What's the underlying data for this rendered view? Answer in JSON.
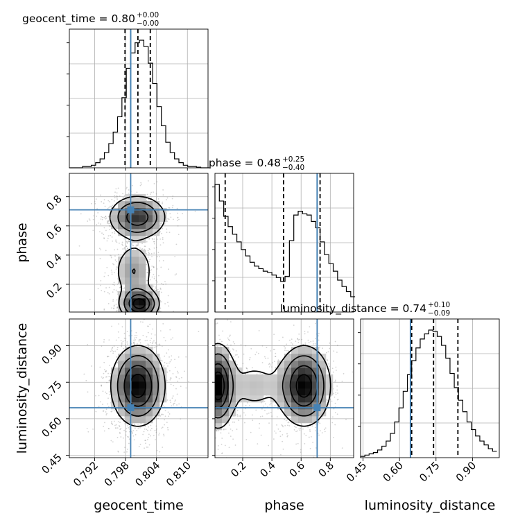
{
  "chart_data": {
    "type": "corner",
    "parameters": [
      "geocent_time",
      "phase",
      "luminosity_distance"
    ],
    "truths": {
      "geocent_time": 0.799,
      "phase": 0.71,
      "luminosity_distance": 0.645
    },
    "ranges": {
      "geocent_time": [
        0.7871,
        0.814
      ],
      "phase": [
        0.01,
        0.96
      ],
      "luminosity_distance": [
        0.44,
        1.01
      ]
    },
    "ticks": {
      "geocent_time": [
        0.792,
        0.798,
        0.804,
        0.81
      ],
      "phase": [
        0.2,
        0.4,
        0.6,
        0.8
      ],
      "luminosity_distance": [
        0.45,
        0.6,
        0.75,
        0.9
      ]
    },
    "tick_labels": {
      "geocent_time": [
        "0.792",
        "0.798",
        "0.804",
        "0.810"
      ],
      "phase": [
        "0.2",
        "0.4",
        "0.6",
        "0.8"
      ],
      "luminosity_distance": [
        "0.45",
        "0.60",
        "0.75",
        "0.90"
      ]
    },
    "quantiles": {
      "geocent_time": [
        0.7979,
        0.8004,
        0.8028
      ],
      "phase": [
        0.08,
        0.48,
        0.73
      ],
      "luminosity_distance": [
        0.65,
        0.74,
        0.84
      ]
    },
    "titles": [
      {
        "param": "geocent_time",
        "prefix": "geocent_time = 0.80",
        "sup": "+0.00",
        "sub": "−0.00"
      },
      {
        "param": "phase",
        "prefix": "phase = 0.48",
        "sup": "+0.25",
        "sub": "−0.40"
      },
      {
        "param": "luminosity_distance",
        "prefix": "luminosity_distance = 0.74",
        "sup": "+0.10",
        "sub": "−0.09"
      }
    ],
    "histograms": {
      "geocent_time": {
        "bin_edges": [
          0.7871,
          0.78795,
          0.7888,
          0.78965,
          0.7905,
          0.79135,
          0.7922,
          0.79305,
          0.7939,
          0.79475,
          0.7956,
          0.79645,
          0.7973,
          0.79815,
          0.799,
          0.79985,
          0.8007,
          0.80155,
          0.8024,
          0.80325,
          0.8041,
          0.80495,
          0.8058,
          0.80665,
          0.8075,
          0.80835,
          0.8092,
          0.81005,
          0.8109,
          0.81175,
          0.8126,
          0.81345,
          0.8143
        ],
        "counts": [
          0,
          0,
          0,
          0.01,
          0.01,
          0.02,
          0.04,
          0.07,
          0.12,
          0.19,
          0.28,
          0.4,
          0.55,
          0.78,
          0.9,
          0.98,
          1.0,
          0.95,
          0.82,
          0.66,
          0.48,
          0.33,
          0.2,
          0.12,
          0.07,
          0.04,
          0.02,
          0.01,
          0.01,
          0.005,
          0,
          0
        ]
      },
      "phase": {
        "bin_edges": [
          0.01,
          0.04,
          0.07,
          0.1,
          0.13,
          0.16,
          0.19,
          0.22,
          0.25,
          0.28,
          0.31,
          0.34,
          0.37,
          0.4,
          0.43,
          0.46,
          0.49,
          0.52,
          0.55,
          0.58,
          0.61,
          0.64,
          0.67,
          0.7,
          0.73,
          0.76,
          0.79,
          0.82,
          0.85,
          0.88,
          0.91,
          0.94,
          0.97
        ],
        "counts": [
          1.0,
          0.87,
          0.75,
          0.67,
          0.61,
          0.55,
          0.49,
          0.44,
          0.39,
          0.36,
          0.34,
          0.32,
          0.31,
          0.29,
          0.27,
          0.24,
          0.28,
          0.56,
          0.76,
          0.79,
          0.77,
          0.76,
          0.71,
          0.66,
          0.55,
          0.45,
          0.38,
          0.32,
          0.25,
          0.2,
          0.16,
          0.12
        ]
      },
      "luminosity_distance": {
        "bin_edges": [
          0.44,
          0.4575,
          0.475,
          0.4925,
          0.51,
          0.5275,
          0.545,
          0.5625,
          0.58,
          0.5975,
          0.615,
          0.6325,
          0.65,
          0.6675,
          0.685,
          0.7025,
          0.72,
          0.7375,
          0.755,
          0.7725,
          0.79,
          0.8075,
          0.825,
          0.8425,
          0.86,
          0.8775,
          0.895,
          0.9125,
          0.93,
          0.9475,
          0.965,
          0.9825,
          1.0
        ],
        "counts": [
          0.01,
          0.02,
          0.03,
          0.04,
          0.06,
          0.09,
          0.13,
          0.19,
          0.28,
          0.39,
          0.52,
          0.65,
          0.76,
          0.86,
          0.93,
          0.97,
          1.0,
          0.99,
          0.95,
          0.88,
          0.78,
          0.66,
          0.55,
          0.45,
          0.36,
          0.28,
          0.22,
          0.17,
          0.13,
          0.1,
          0.07,
          0.05
        ]
      }
    },
    "joint_densities": [
      {
        "x": "geocent_time",
        "y": "phase",
        "components": [
          {
            "mx": 0.8007,
            "my": 0.065,
            "sx": 0.0019,
            "sy": 0.055,
            "w": 1.0
          },
          {
            "mx": 0.7996,
            "my": 0.29,
            "sx": 0.0022,
            "sy": 0.11,
            "w": 0.33
          },
          {
            "mx": 0.8003,
            "my": 0.66,
            "sx": 0.0028,
            "sy": 0.075,
            "w": 0.8
          }
        ]
      },
      {
        "x": "geocent_time",
        "y": "luminosity_distance",
        "components": [
          {
            "mx": 0.8004,
            "my": 0.735,
            "sx": 0.0026,
            "sy": 0.082,
            "w": 1.0
          }
        ]
      },
      {
        "x": "phase",
        "y": "luminosity_distance",
        "components": [
          {
            "mx": 0.03,
            "my": 0.735,
            "sx": 0.06,
            "sy": 0.085,
            "w": 1.0
          },
          {
            "mx": 0.62,
            "my": 0.735,
            "sx": 0.09,
            "sy": 0.082,
            "w": 0.95
          },
          {
            "mx": 0.28,
            "my": 0.735,
            "sx": 0.12,
            "sy": 0.07,
            "w": 0.18
          }
        ]
      }
    ],
    "colors": {
      "truth": "#4682b4",
      "hist": "#000000",
      "grid": "#b0b0b0",
      "points": "#808080"
    },
    "grid": true
  }
}
